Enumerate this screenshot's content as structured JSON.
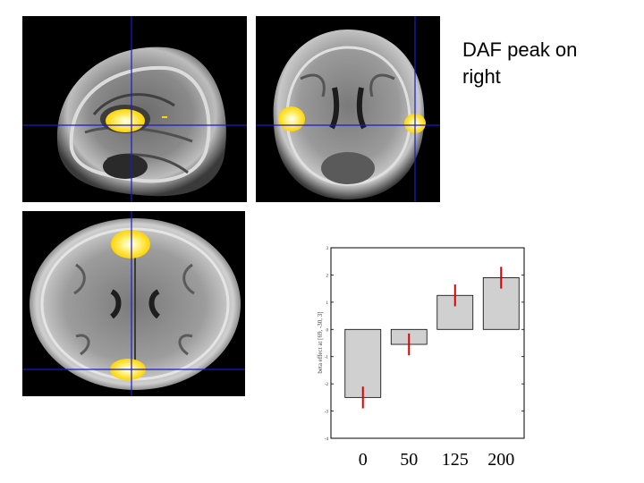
{
  "caption": {
    "line1": "DAF peak on",
    "line2": "right"
  },
  "brain_views": [
    {
      "view": "sagittal"
    },
    {
      "view": "coronal"
    },
    {
      "view": "axial"
    }
  ],
  "colors": {
    "crosshair": "#1a1acc",
    "activation": "#ffd400",
    "activation_core": "#ffffff",
    "bar_fill": "#d0d0d0",
    "error_bar": "#dd0000"
  },
  "chart_data": {
    "type": "bar",
    "categories": [
      "0",
      "50",
      "125",
      "200"
    ],
    "values": [
      -2.5,
      -0.55,
      1.25,
      1.9
    ],
    "errors": [
      0.4,
      0.4,
      0.4,
      0.4
    ],
    "ylim": [
      -4,
      3
    ],
    "yticks": [
      -4,
      -3,
      -2,
      -1,
      0,
      1,
      2,
      3
    ],
    "ytick_labels": [
      "-4",
      "-3",
      "-2",
      "-1",
      "0",
      "1",
      "2",
      "3"
    ],
    "ylabel": "beta effect at [69, -30, 3]",
    "xlabel": "",
    "title": ""
  }
}
